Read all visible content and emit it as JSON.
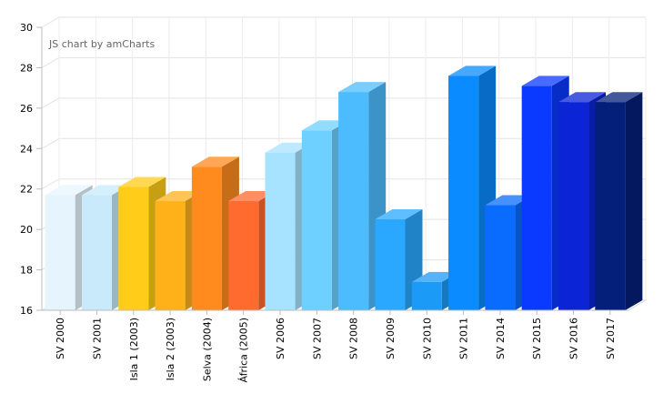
{
  "chart_data": {
    "type": "bar",
    "style": "3d-column",
    "title": "",
    "xlabel": "",
    "ylabel": "",
    "credit": "JS chart by amCharts",
    "ylim": [
      16,
      30
    ],
    "yticks": [
      16,
      18,
      20,
      22,
      24,
      26,
      28,
      30
    ],
    "categories": [
      "SV 2000",
      "SV 2001",
      "Isla 1 (2003)",
      "Isla 2 (2003)",
      "Selva (2004)",
      "África (2005)",
      "SV 2006",
      "SV 2007",
      "SV 2008",
      "SV 2009",
      "SV 2010",
      "SV 2011",
      "SV 2014",
      "SV 2015",
      "SV 2016",
      "SV 2017"
    ],
    "values": [
      21.7,
      21.7,
      22.1,
      21.4,
      23.1,
      21.4,
      23.8,
      24.9,
      26.8,
      20.5,
      17.4,
      27.6,
      21.2,
      27.1,
      26.3,
      26.3
    ],
    "colors": [
      "#e6f4fd",
      "#c8eafb",
      "#ffcc1a",
      "#ffb119",
      "#ff8a1d",
      "#ff6a2f",
      "#a7e3ff",
      "#6dd0ff",
      "#4cbcff",
      "#2aa8ff",
      "#1c9af7",
      "#0a8bff",
      "#0a6cff",
      "#0a3aff",
      "#0a24d6",
      "#041f7a"
    ],
    "grid": true
  }
}
